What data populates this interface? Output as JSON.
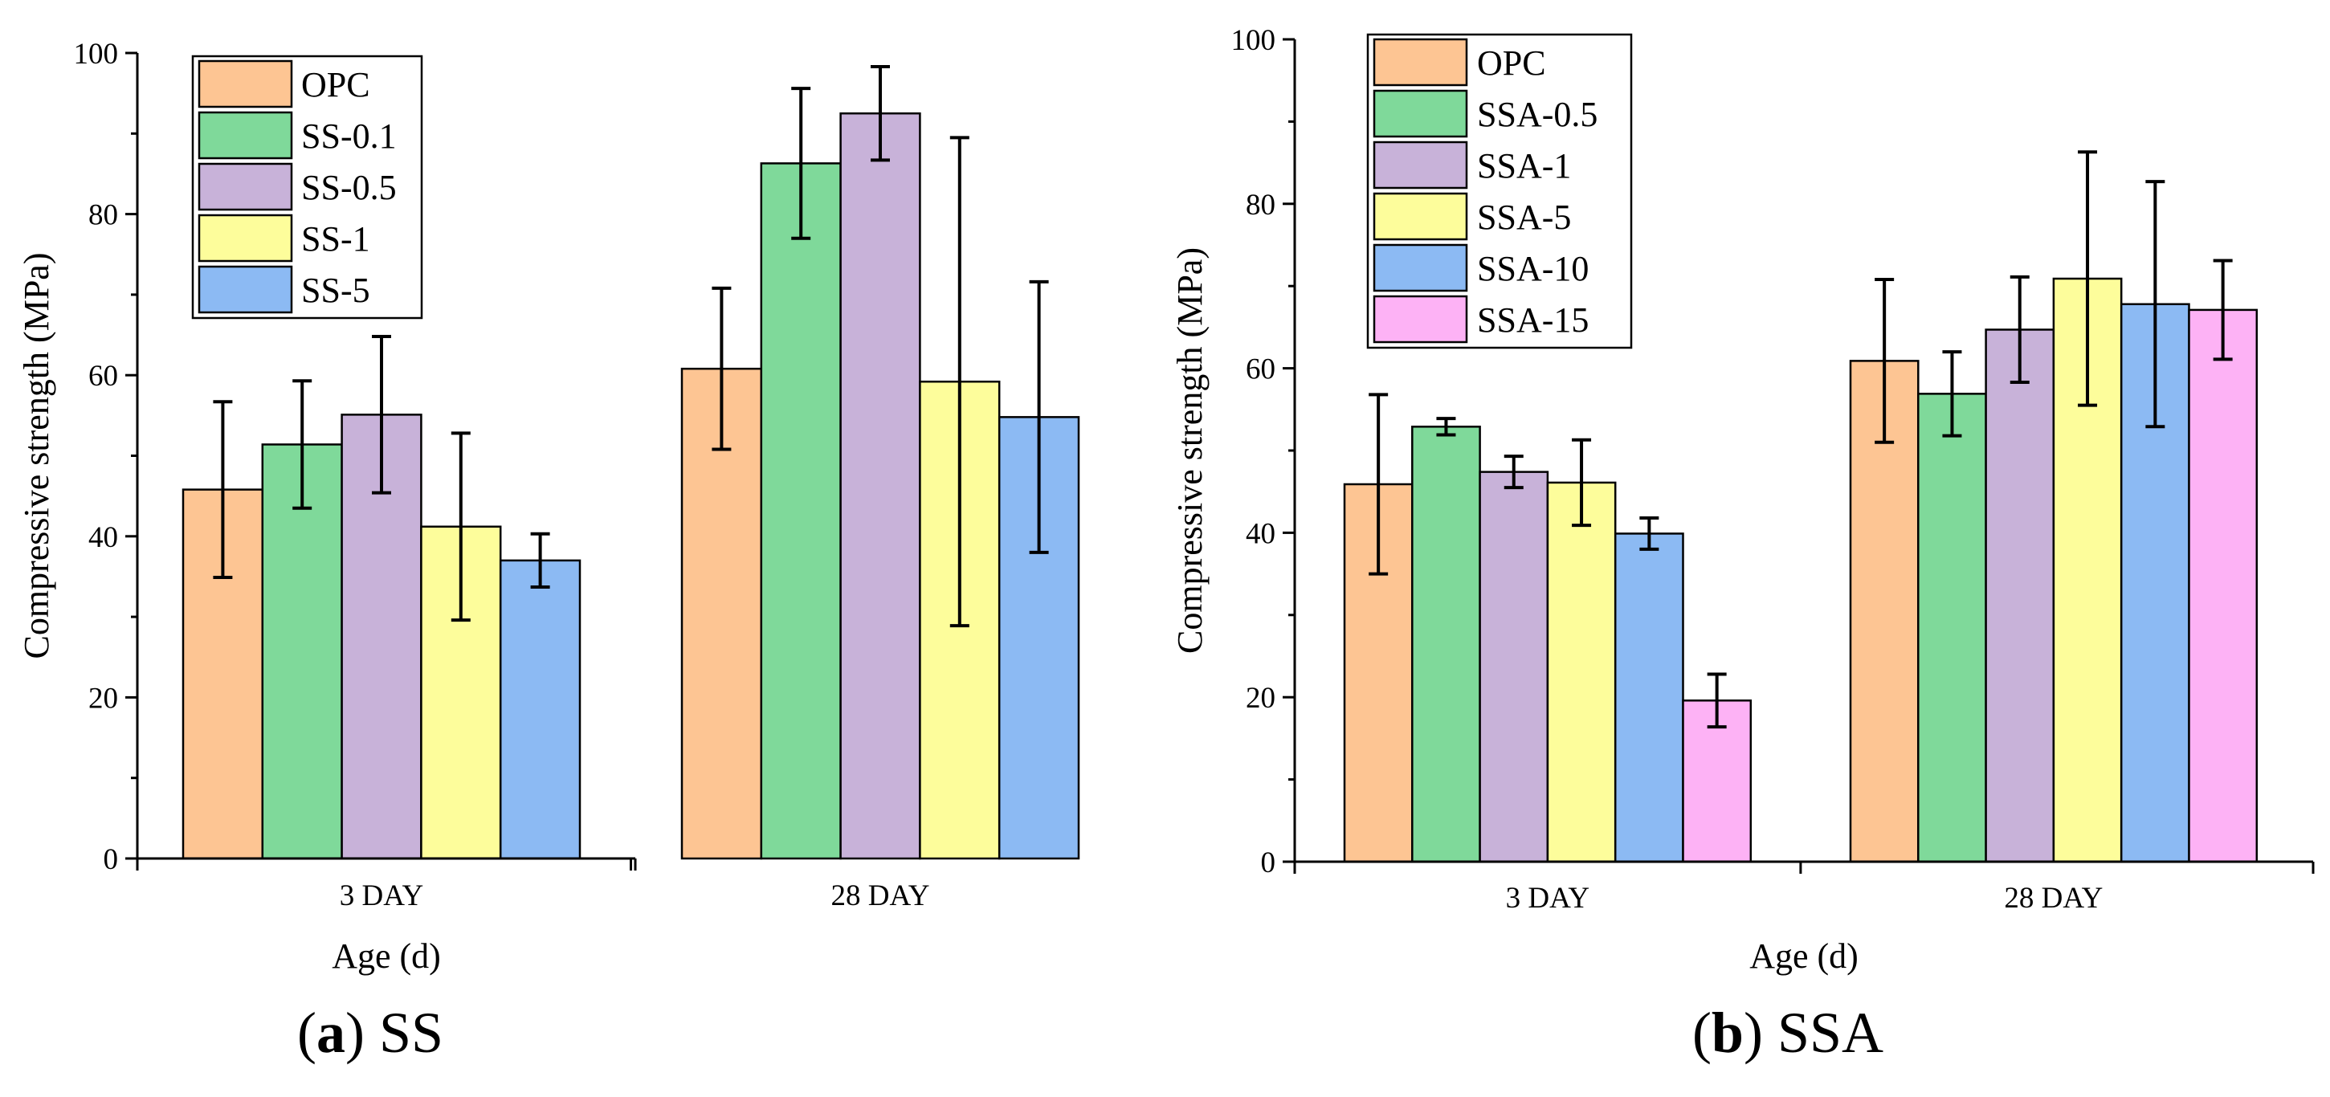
{
  "colors": {
    "OPC": "#FDC593",
    "SS-0.1": "#7FD99A",
    "SS-0.5": "#C8B2D9",
    "SS-1": "#FDFD9B",
    "SS-5": "#8CBAF3",
    "SSA-0.5": "#7FD99A",
    "SSA-1": "#C8B2D9",
    "SSA-5": "#FDFD9B",
    "SSA-10": "#8CBAF3",
    "SSA-15": "#FDB2F5"
  },
  "chart_data": [
    {
      "type": "bar",
      "id": "a",
      "caption_letter": "a",
      "caption_text": "SS",
      "title": "",
      "xlabel": "Age (d)",
      "ylabel": "Compressive strength (MPa)",
      "ylim": [
        0,
        100
      ],
      "yticks": [
        0,
        20,
        40,
        60,
        80,
        100
      ],
      "categories": [
        "3 DAY",
        "28 DAY"
      ],
      "legend_position": "top-left",
      "series": [
        {
          "name": "OPC",
          "values": [
            45.8,
            60.8
          ],
          "errors": [
            10.9,
            10.0
          ]
        },
        {
          "name": "SS-0.1",
          "values": [
            51.4,
            86.3
          ],
          "errors": [
            7.9,
            9.3
          ]
        },
        {
          "name": "SS-0.5",
          "values": [
            55.1,
            92.5
          ],
          "errors": [
            9.7,
            5.8
          ]
        },
        {
          "name": "SS-1",
          "values": [
            41.2,
            59.2
          ],
          "errors": [
            11.6,
            30.3
          ]
        },
        {
          "name": "SS-5",
          "values": [
            37.0,
            54.8
          ],
          "errors": [
            3.3,
            16.8
          ]
        }
      ]
    },
    {
      "type": "bar",
      "id": "b",
      "caption_letter": "b",
      "caption_text": "SSA",
      "title": "",
      "xlabel": "Age (d)",
      "ylabel": "Compressive strength (MPa)",
      "ylim": [
        0,
        100
      ],
      "yticks": [
        0,
        20,
        40,
        60,
        80,
        100
      ],
      "categories": [
        "3 DAY",
        "28 DAY"
      ],
      "legend_position": "top-left",
      "series": [
        {
          "name": "OPC",
          "values": [
            45.9,
            60.9
          ],
          "errors": [
            10.9,
            9.9
          ]
        },
        {
          "name": "SSA-0.5",
          "values": [
            52.9,
            56.9
          ],
          "errors": [
            1.0,
            5.1
          ]
        },
        {
          "name": "SSA-1",
          "values": [
            47.4,
            64.7
          ],
          "errors": [
            1.9,
            6.4
          ]
        },
        {
          "name": "SSA-5",
          "values": [
            46.1,
            70.9
          ],
          "errors": [
            5.2,
            15.4
          ]
        },
        {
          "name": "SSA-10",
          "values": [
            39.9,
            67.8
          ],
          "errors": [
            1.9,
            14.9
          ]
        },
        {
          "name": "SSA-15",
          "values": [
            19.6,
            67.1
          ],
          "errors": [
            3.2,
            6.0
          ]
        }
      ]
    }
  ]
}
